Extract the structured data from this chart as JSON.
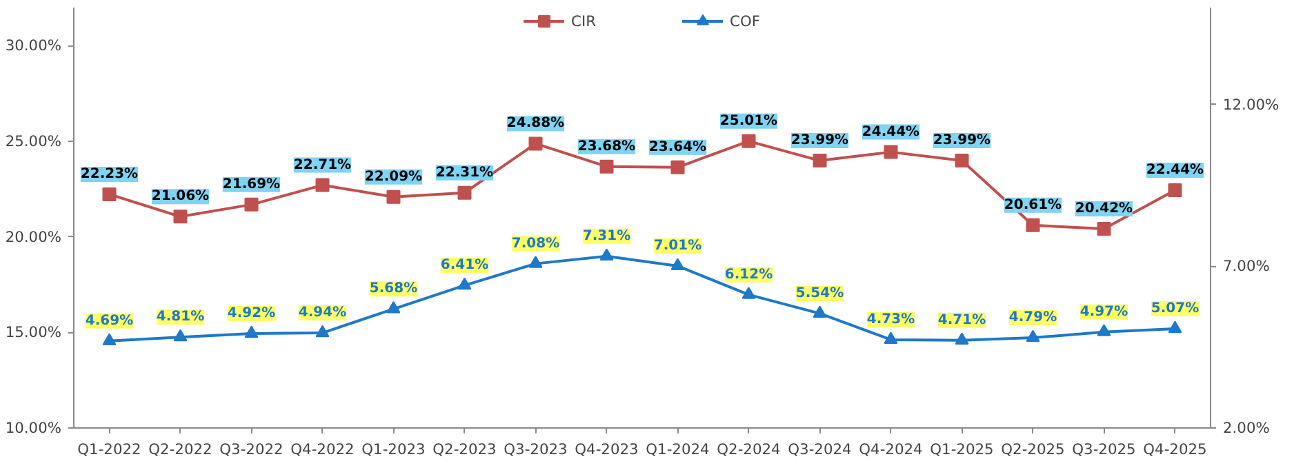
{
  "chart_data": {
    "type": "line",
    "categories": [
      "Q1-2022",
      "Q2-2022",
      "Q3-2022",
      "Q4-2022",
      "Q1-2023",
      "Q2-2023",
      "Q3-2023",
      "Q4-2023",
      "Q1-2024",
      "Q2-2024",
      "Q3-2024",
      "Q4-2024",
      "Q1-2025",
      "Q2-2025",
      "Q3-2025",
      "Q4-2025"
    ],
    "series": [
      {
        "name": "CIR",
        "color": "#c0504d",
        "marker": "square",
        "values": [
          22.23,
          21.06,
          21.69,
          22.71,
          22.09,
          22.31,
          24.88,
          23.68,
          23.64,
          25.01,
          23.99,
          24.44,
          23.99,
          20.61,
          20.42,
          22.44
        ],
        "value_labels": [
          "22.23%",
          "21.06%",
          "21.69%",
          "22.71%",
          "22.09%",
          "22.31%",
          "24.88%",
          "23.68%",
          "23.64%",
          "25.01%",
          "23.99%",
          "24.44%",
          "23.99%",
          "20.61%",
          "20.42%",
          "22.44%"
        ]
      },
      {
        "name": "COF",
        "color": "#1f78c8",
        "marker": "triangle",
        "axis": "y2",
        "values": [
          4.69,
          4.81,
          4.92,
          4.94,
          5.68,
          6.41,
          7.08,
          7.31,
          7.01,
          6.12,
          5.54,
          4.73,
          4.71,
          4.79,
          4.97,
          5.07
        ],
        "value_labels": [
          "4.69%",
          "4.81%",
          "4.92%",
          "4.94%",
          "5.68%",
          "6.41%",
          "7.08%",
          "7.31%",
          "7.01%",
          "6.12%",
          "5.54%",
          "4.73%",
          "4.71%",
          "4.79%",
          "4.97%",
          "5.07%"
        ]
      }
    ],
    "ylim": [
      10,
      32
    ],
    "yticks": [
      {
        "value": 10,
        "label": "10.00%"
      },
      {
        "value": 15,
        "label": "15.00%"
      },
      {
        "value": 20,
        "label": "20.00%"
      },
      {
        "value": 25,
        "label": "25.00%"
      },
      {
        "value": 30,
        "label": "30.00%"
      }
    ],
    "y2lim": [
      2,
      15
    ],
    "y2ticks": [
      {
        "value": 2,
        "label": "2.00%"
      },
      {
        "value": 7,
        "label": "7.00%"
      },
      {
        "value": 12,
        "label": "12.00%"
      }
    ],
    "legend": "top"
  }
}
